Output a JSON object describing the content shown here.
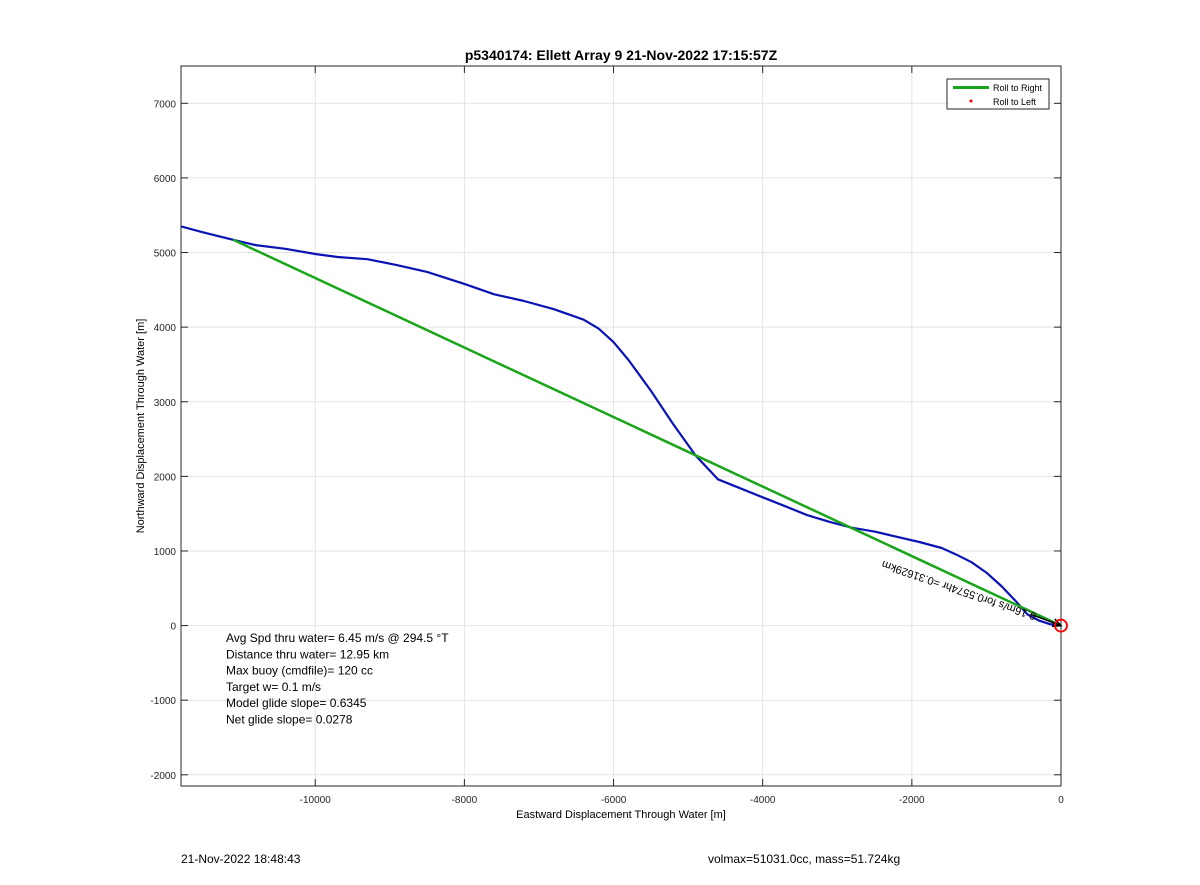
{
  "chart_data": {
    "type": "line",
    "title": "p5340174: Ellett Array 9 21-Nov-2022 17:15:57Z",
    "xlabel": "Eastward Displacement Through Water [m]",
    "ylabel": "Northward Displacement Through Water [m]",
    "xlim": [
      -11800,
      0
    ],
    "ylim": [
      -2150,
      7500
    ],
    "xticks": [
      -10000,
      -8000,
      -6000,
      -4000,
      -2000,
      0
    ],
    "yticks": [
      -2000,
      -1000,
      0,
      1000,
      2000,
      3000,
      4000,
      5000,
      6000,
      7000
    ],
    "grid": true,
    "legend_position": "top-right",
    "legend": [
      {
        "label": "Roll to Right",
        "color": "#1aa51a",
        "marker": "line"
      },
      {
        "label": "Roll to Left",
        "color": "#ff0000",
        "marker": "dot"
      }
    ],
    "series": [
      {
        "color": "#0a14b4",
        "x": [
          -11800,
          -11500,
          -11100,
          -10800,
          -10400,
          -10000,
          -9700,
          -9300,
          -8900,
          -8500,
          -8000,
          -7600,
          -7200,
          -6800,
          -6400,
          -6200,
          -6000,
          -5800,
          -5500,
          -5200,
          -4900,
          -4600,
          -4300,
          -4000,
          -3700,
          -3400,
          -3100,
          -2800,
          -2500,
          -2200,
          -1900,
          -1600,
          -1400,
          -1200,
          -1000,
          -800,
          -600,
          -450,
          -300,
          -150,
          0
        ],
        "y": [
          5350,
          5270,
          5170,
          5100,
          5050,
          4980,
          4940,
          4910,
          4830,
          4740,
          4580,
          4440,
          4350,
          4240,
          4100,
          3980,
          3800,
          3560,
          3150,
          2700,
          2280,
          1960,
          1840,
          1720,
          1600,
          1480,
          1390,
          1310,
          1260,
          1190,
          1120,
          1040,
          950,
          850,
          710,
          530,
          320,
          150,
          70,
          20,
          0
        ]
      },
      {
        "name": "Roll to Right",
        "color": "#1aa51a",
        "x": [
          -11100,
          0
        ],
        "y": [
          5170,
          0
        ]
      }
    ],
    "current_arrow_label": "0.16m/s for0.5574hr =0.31629km",
    "current_arrow": {
      "x": [
        -400,
        0
      ],
      "y": [
        150,
        0
      ]
    },
    "end_marker": {
      "x": 0,
      "y": 0,
      "color": "#ff0000"
    },
    "stats": [
      "Avg Spd thru water=  6.45 m/s @ 294.5 °T",
      "Distance thru water= 12.95 km",
      "Max buoy (cmdfile)= 120 cc",
      "Target w= 0.1 m/s",
      "Model glide slope= 0.6345",
      "Net glide slope= 0.0278"
    ]
  },
  "footer": {
    "timestamp": "21-Nov-2022 18:48:43",
    "info": "volmax=51031.0cc, mass=51.724kg"
  }
}
